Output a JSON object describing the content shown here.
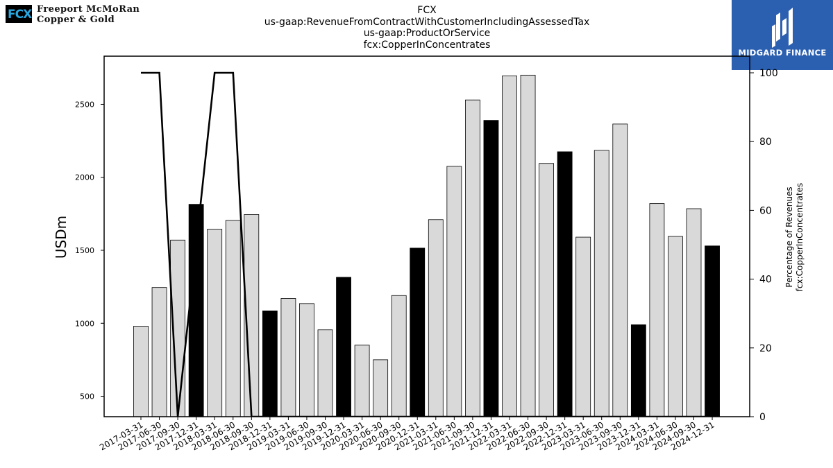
{
  "logo": {
    "mark_text": "FCX",
    "line1": "Freeport McMoRan",
    "line2": "Copper & Gold"
  },
  "title_lines": [
    "FCX",
    "us-gaap:RevenueFromContractWithCustomerIncludingAssessedTax",
    "us-gaap:ProductOrService",
    "fcx:CopperInConcentrates"
  ],
  "brand": {
    "name": "MIDGARD FINANCE"
  },
  "chart_data": {
    "type": "bar",
    "ylabel": "USDm",
    "y2label_lines": [
      "Percentage of Revenues",
      "fcx:CopperInConcentrates"
    ],
    "ylim": [
      360,
      2830
    ],
    "y2lim": [
      0,
      100
    ],
    "yticks": [
      500,
      1000,
      1500,
      2000,
      2500
    ],
    "y2ticks": [
      0,
      20,
      40,
      60,
      80,
      100
    ],
    "categories": [
      "2017-03-31",
      "2017-06-30",
      "2017-09-30",
      "2017-12-31",
      "2018-03-31",
      "2018-06-30",
      "2018-09-30",
      "2018-12-31",
      "2019-03-31",
      "2019-06-30",
      "2019-09-30",
      "2019-12-31",
      "2020-03-31",
      "2020-06-30",
      "2020-09-30",
      "2020-12-31",
      "2021-03-31",
      "2021-06-30",
      "2021-09-30",
      "2021-12-31",
      "2022-03-31",
      "2022-06-30",
      "2022-09-30",
      "2022-12-31",
      "2023-03-31",
      "2023-06-30",
      "2023-09-30",
      "2023-12-31",
      "2024-03-31",
      "2024-06-30",
      "2024-09-30",
      "2024-12-31"
    ],
    "values": [
      980,
      1245,
      1570,
      1815,
      1645,
      1705,
      1745,
      1085,
      1170,
      1135,
      955,
      1315,
      850,
      750,
      1190,
      1515,
      1710,
      2075,
      2530,
      2390,
      2695,
      2700,
      2095,
      2175,
      1590,
      2185,
      2365,
      990,
      1820,
      1595,
      1785,
      1530
    ],
    "highlight_year_end": [
      false,
      false,
      false,
      true,
      false,
      false,
      false,
      true,
      false,
      false,
      false,
      true,
      false,
      false,
      false,
      true,
      false,
      false,
      false,
      true,
      false,
      false,
      false,
      true,
      false,
      false,
      false,
      true,
      false,
      false,
      false,
      true
    ],
    "percent_series": {
      "values": [
        100,
        100,
        0,
        null,
        100,
        100,
        0,
        0,
        0,
        0,
        0,
        0,
        0,
        0,
        0,
        0,
        0,
        0,
        0,
        0,
        0,
        0,
        0,
        0,
        0,
        0,
        0,
        0,
        0,
        0,
        0,
        0
      ]
    },
    "colors": {
      "bar": "#d9d9d9",
      "bar_highlight": "#000000",
      "line": "#000000"
    }
  }
}
